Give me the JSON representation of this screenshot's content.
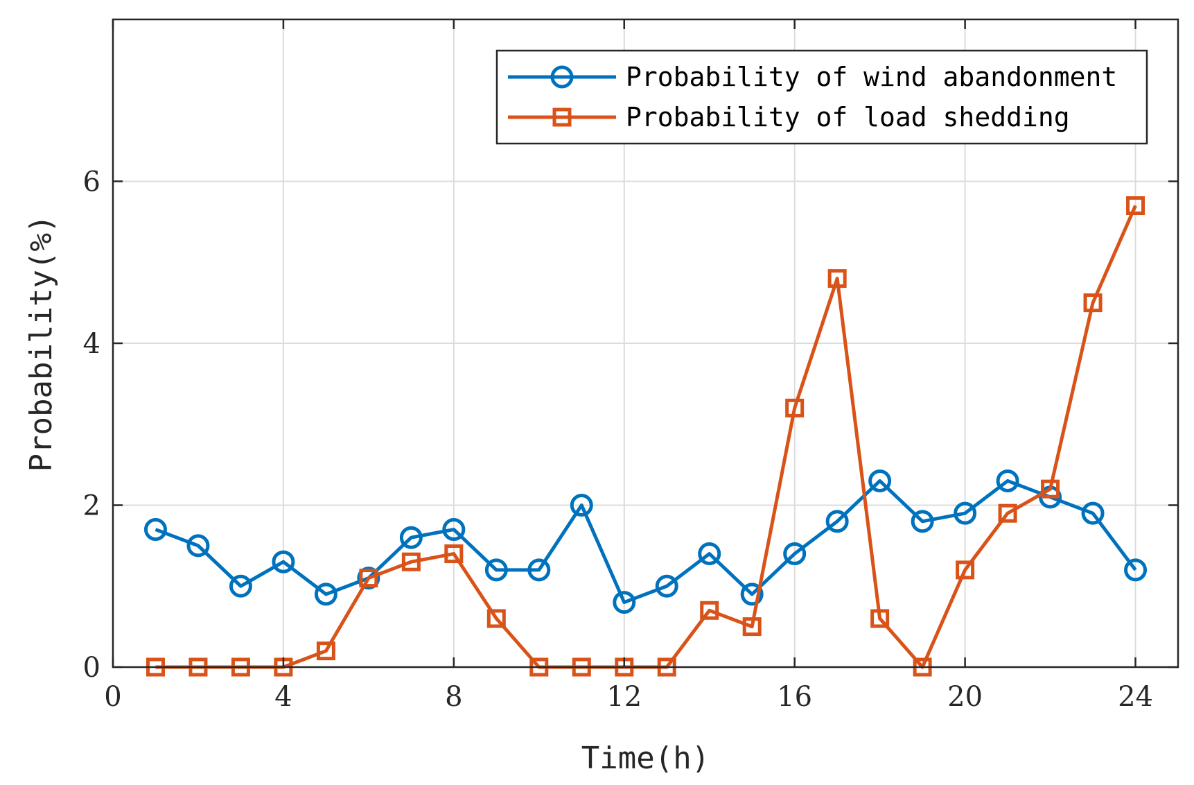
{
  "chart_data": {
    "type": "line",
    "title": "",
    "xlabel": "Time(h)",
    "ylabel": "Probability(%)",
    "xlim": [
      0,
      25
    ],
    "ylim": [
      0,
      8
    ],
    "xticks": [
      0,
      4,
      8,
      12,
      16,
      20,
      24
    ],
    "yticks": [
      0,
      2,
      4,
      6
    ],
    "xtick_labels": [
      "0",
      "4",
      "8",
      "12",
      "16",
      "20",
      "24"
    ],
    "ytick_labels": [
      "0",
      "2",
      "4",
      "6"
    ],
    "grid": true,
    "legend_position": "top-right",
    "x": [
      1,
      2,
      3,
      4,
      5,
      6,
      7,
      8,
      9,
      10,
      11,
      12,
      13,
      14,
      15,
      16,
      17,
      18,
      19,
      20,
      21,
      22,
      23,
      24
    ],
    "series": [
      {
        "name": "Probability of wind abandonment",
        "color": "#0072BD",
        "marker": "circle",
        "values": [
          1.7,
          1.5,
          1.0,
          1.3,
          0.9,
          1.1,
          1.6,
          1.7,
          1.2,
          1.2,
          2.0,
          0.8,
          1.0,
          1.4,
          0.9,
          1.4,
          1.8,
          2.3,
          1.8,
          1.9,
          2.3,
          2.1,
          1.9,
          1.2
        ]
      },
      {
        "name": "Probability of load shedding",
        "color": "#D95319",
        "marker": "square",
        "values": [
          0,
          0,
          0,
          0,
          0.2,
          1.1,
          1.3,
          1.4,
          0.6,
          0,
          0,
          0,
          0,
          0.7,
          0.5,
          3.2,
          4.8,
          0.6,
          0,
          1.2,
          1.9,
          2.2,
          4.5,
          5.7
        ]
      }
    ]
  }
}
